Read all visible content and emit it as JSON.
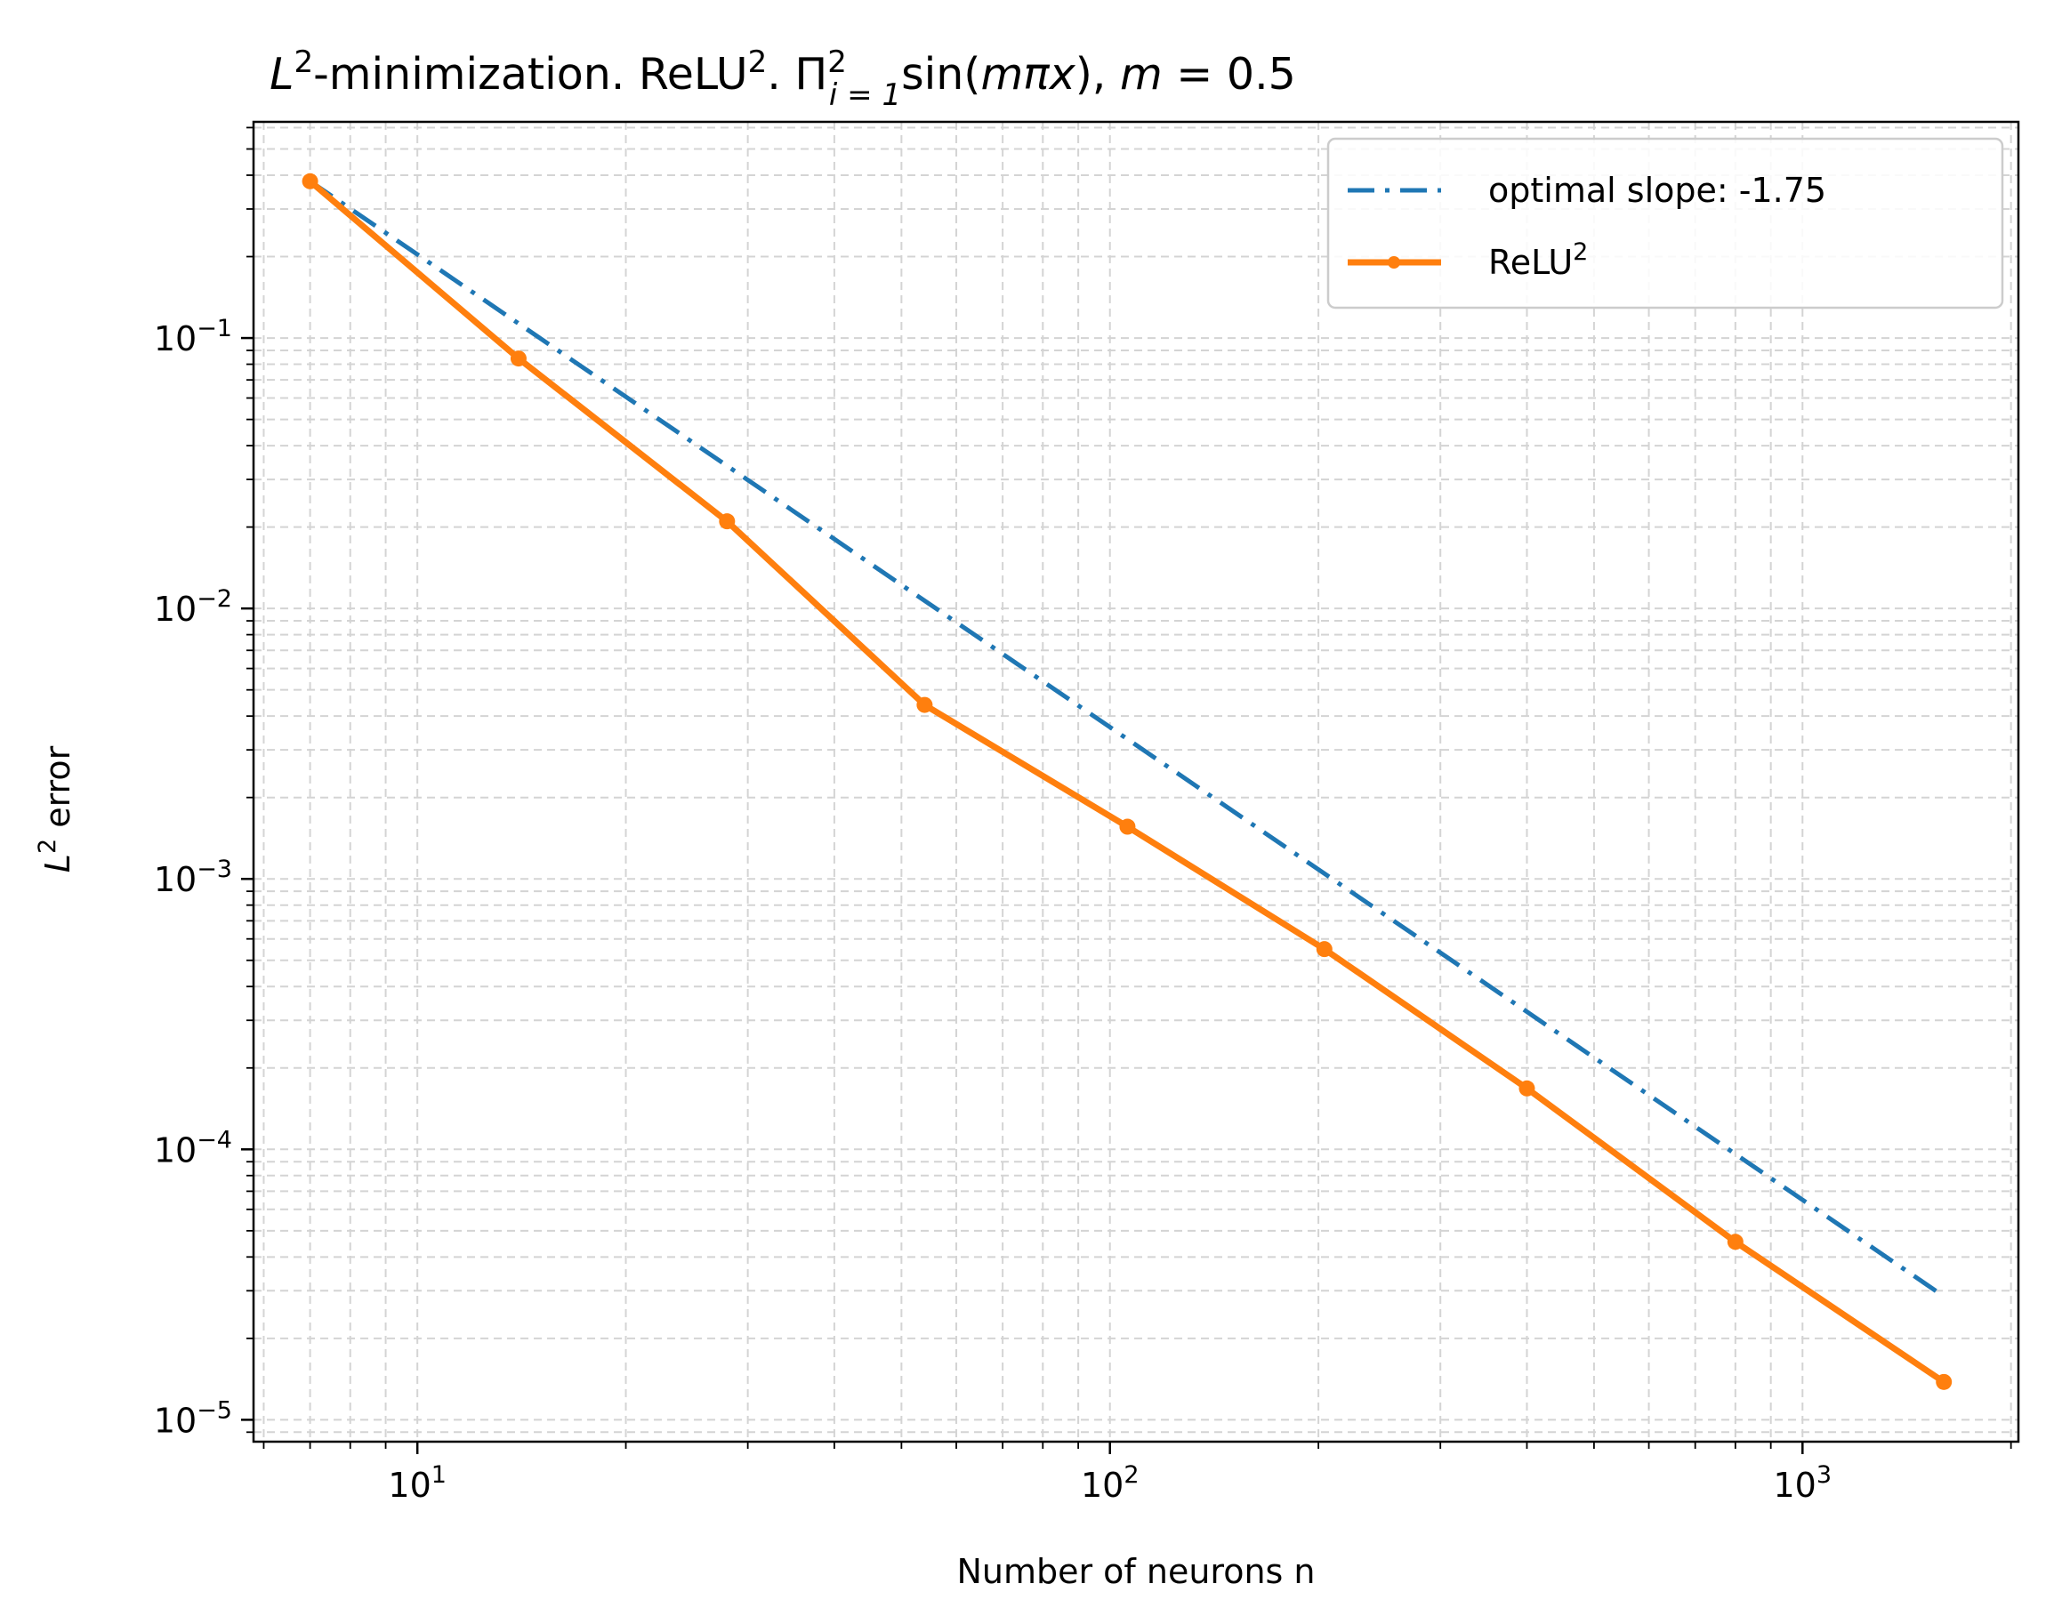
{
  "chart_data": {
    "type": "line",
    "title": {
      "pre": "L",
      "pre_sup": "2",
      "part1": "-minimization. ReLU",
      "part1_sup": "2",
      "part2": ". Π",
      "prod_sup": "2",
      "prod_sub": "i = 1",
      "part3": "sin(",
      "m_var": "m",
      "pi_var": "π",
      "x_var": "x",
      "part4": "), ",
      "m_var2": "m",
      "part5": " = 0.5"
    },
    "xlabel": "Number of neurons n",
    "ylabel": {
      "var": "L",
      "sup": "2",
      "rest": " error"
    },
    "x_scale": "log",
    "y_scale": "log",
    "xlim": [
      5.8,
      2050
    ],
    "ylim": [
      8.3e-06,
      0.63
    ],
    "grid": true,
    "x_ticks": [
      {
        "base": "10",
        "exp": "1",
        "value": 10
      },
      {
        "base": "10",
        "exp": "2",
        "value": 100
      },
      {
        "base": "10",
        "exp": "3",
        "value": 1000
      }
    ],
    "y_ticks": [
      {
        "base": "10",
        "exp": "−1",
        "value": 0.1
      },
      {
        "base": "10",
        "exp": "−2",
        "value": 0.01
      },
      {
        "base": "10",
        "exp": "−3",
        "value": 0.001
      },
      {
        "base": "10",
        "exp": "−4",
        "value": 0.0001
      },
      {
        "base": "10",
        "exp": "−5",
        "value": 1e-05
      }
    ],
    "legend_position": "top-right",
    "series": [
      {
        "name": "optimal slope: -1.75",
        "style": "dashdot",
        "color": "#1f77b4",
        "x": [
          7,
          1600
        ],
        "y": [
          0.38,
          2.86e-05
        ]
      },
      {
        "name": "ReLU",
        "name_sup": "2",
        "style": "solid-markers",
        "color": "#ff7f0e",
        "x": [
          7,
          14,
          28,
          54,
          106,
          204,
          400,
          800,
          1600
        ],
        "y": [
          0.38,
          0.084,
          0.021,
          0.0044,
          0.00156,
          0.00055,
          0.000168,
          4.55e-05,
          1.38e-05
        ]
      }
    ]
  }
}
